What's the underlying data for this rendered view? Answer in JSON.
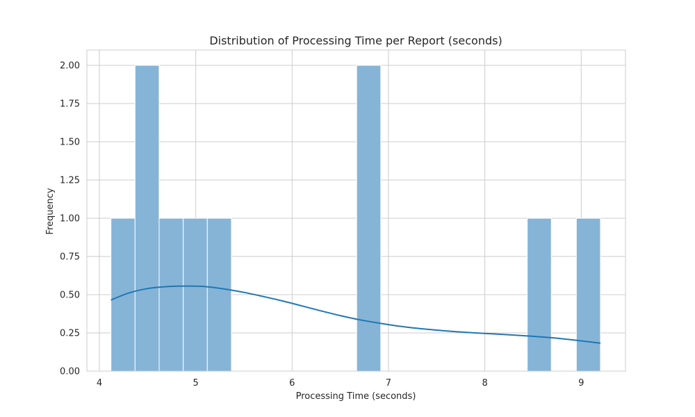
{
  "chart_data": {
    "type": "bar",
    "subtype": "histogram-with-kde",
    "title": "Distribution of Processing Time per Report (seconds)",
    "xlabel": "Processing Time (seconds)",
    "ylabel": "Frequency",
    "xlim": [
      3.87,
      9.46
    ],
    "ylim": [
      0,
      2.1
    ],
    "xticks": [
      4,
      5,
      6,
      7,
      8,
      9
    ],
    "yticks": [
      0,
      0.25,
      0.5,
      0.75,
      1.0,
      1.25,
      1.5,
      1.75,
      2.0
    ],
    "ytick_labels": [
      "0.00",
      "0.25",
      "0.50",
      "0.75",
      "1.00",
      "1.25",
      "1.50",
      "1.75",
      "2.00"
    ],
    "grid": true,
    "bins": [
      {
        "x0": 4.12,
        "x1": 4.37,
        "count": 1
      },
      {
        "x0": 4.37,
        "x1": 4.62,
        "count": 2
      },
      {
        "x0": 4.62,
        "x1": 4.87,
        "count": 1
      },
      {
        "x0": 4.87,
        "x1": 5.12,
        "count": 1
      },
      {
        "x0": 5.12,
        "x1": 5.37,
        "count": 1
      },
      {
        "x0": 6.67,
        "x1": 6.92,
        "count": 2
      },
      {
        "x0": 8.44,
        "x1": 8.69,
        "count": 1
      },
      {
        "x0": 8.95,
        "x1": 9.2,
        "count": 1
      }
    ],
    "kde": {
      "x": [
        4.12,
        4.3,
        4.5,
        4.7,
        4.9,
        5.1,
        5.3,
        5.5,
        5.7,
        5.9,
        6.1,
        6.3,
        6.5,
        6.7,
        6.9,
        7.1,
        7.3,
        7.5,
        7.7,
        7.9,
        8.1,
        8.3,
        8.5,
        8.7,
        8.9,
        9.2
      ],
      "y": [
        0.465,
        0.51,
        0.54,
        0.553,
        0.556,
        0.553,
        0.537,
        0.515,
        0.488,
        0.459,
        0.427,
        0.394,
        0.363,
        0.336,
        0.314,
        0.295,
        0.28,
        0.268,
        0.258,
        0.25,
        0.243,
        0.236,
        0.228,
        0.218,
        0.205,
        0.183
      ]
    },
    "colors": {
      "bar_fill": "#86b4d7",
      "bar_stroke": "#ffffff",
      "kde_line": "#1f77b4",
      "grid": "#cccccc",
      "frame": "#cccccc"
    }
  }
}
